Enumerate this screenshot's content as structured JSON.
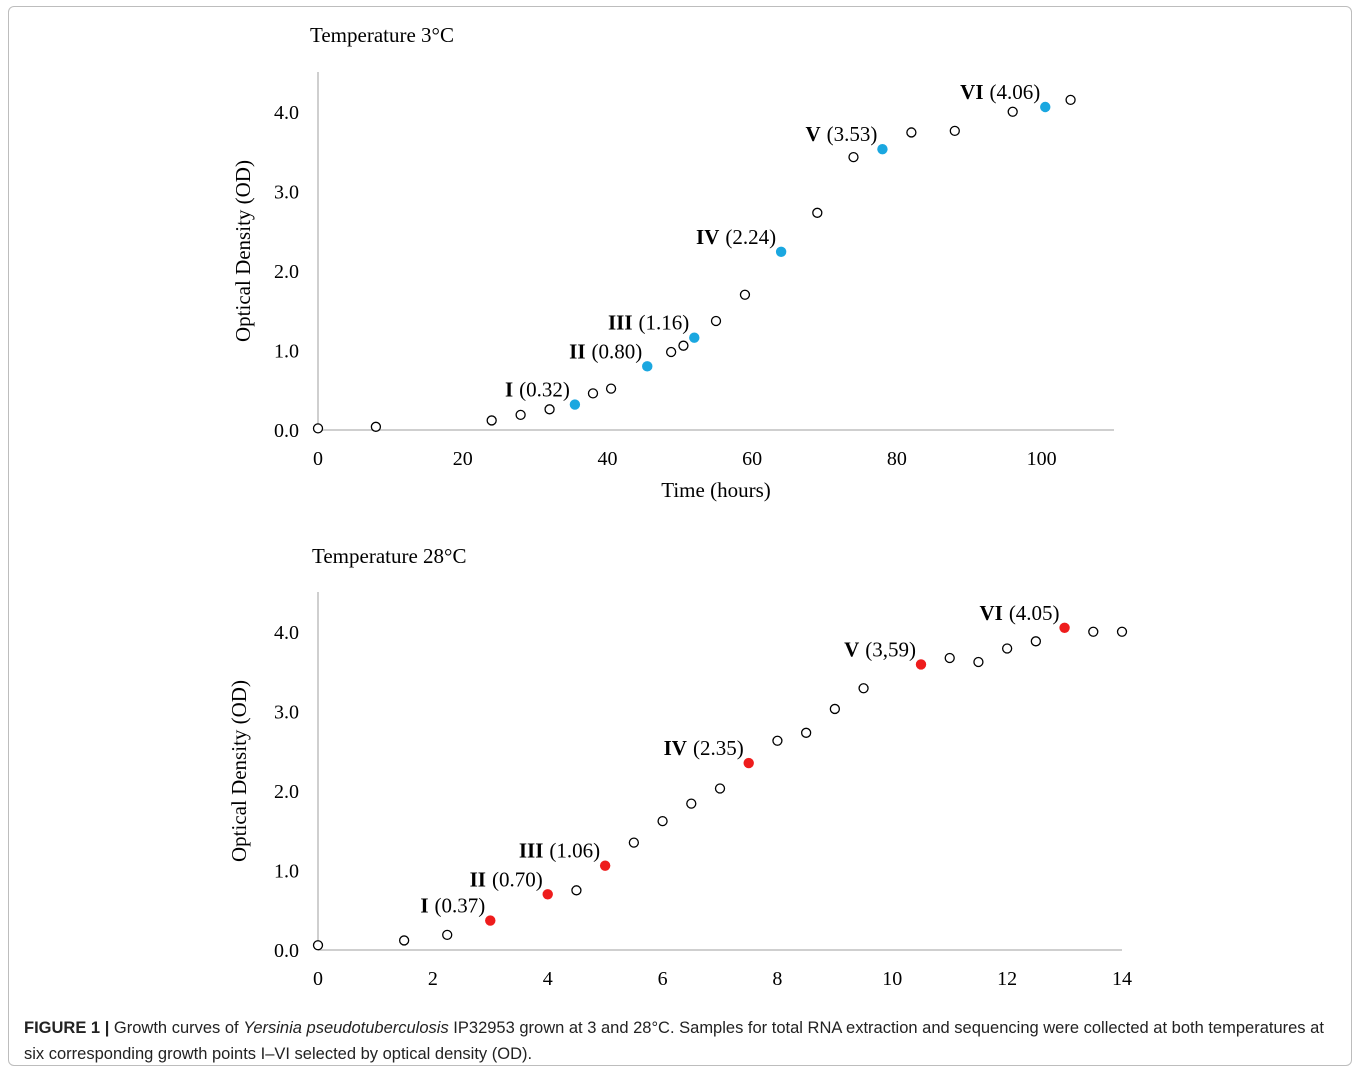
{
  "chart_data": [
    {
      "type": "scatter",
      "title": "Temperature 3°C",
      "xlabel": "Time (hours)",
      "ylabel": "Optical Density (OD)",
      "xlim": [
        0,
        110
      ],
      "ylim": [
        0,
        4.5
      ],
      "xticks": [
        0,
        20,
        40,
        60,
        80,
        100
      ],
      "yticks": [
        0,
        1,
        2,
        3,
        4
      ],
      "xtick_labels": [
        "0",
        "20",
        "40",
        "60",
        "80",
        "100"
      ],
      "ytick_labels": [
        "0.0",
        "1.0",
        "2.0",
        "3.0",
        "4.0"
      ],
      "grid": false,
      "highlight_color": "#1aa7e0",
      "series": [
        {
          "style": "open-circle",
          "points": [
            {
              "x": 0,
              "y": 0.02
            },
            {
              "x": 8,
              "y": 0.04
            },
            {
              "x": 24,
              "y": 0.12
            },
            {
              "x": 28,
              "y": 0.19
            },
            {
              "x": 32,
              "y": 0.26
            },
            {
              "x": 38,
              "y": 0.46
            },
            {
              "x": 40.5,
              "y": 0.52
            },
            {
              "x": 48.8,
              "y": 0.98
            },
            {
              "x": 50.5,
              "y": 1.06
            },
            {
              "x": 55,
              "y": 1.37
            },
            {
              "x": 59,
              "y": 1.7
            },
            {
              "x": 69,
              "y": 2.73
            },
            {
              "x": 74,
              "y": 3.43
            },
            {
              "x": 82,
              "y": 3.74
            },
            {
              "x": 88,
              "y": 3.76
            },
            {
              "x": 96,
              "y": 4.0
            },
            {
              "x": 104,
              "y": 4.15
            }
          ]
        },
        {
          "style": "filled",
          "points": [
            {
              "x": 35.5,
              "y": 0.32,
              "roman": "I",
              "value_text": "(0.32)"
            },
            {
              "x": 45.5,
              "y": 0.8,
              "roman": "II",
              "value_text": "(0.80)"
            },
            {
              "x": 52,
              "y": 1.16,
              "roman": "III",
              "value_text": "(1.16)"
            },
            {
              "x": 64,
              "y": 2.24,
              "roman": "IV",
              "value_text": "(2.24)"
            },
            {
              "x": 78,
              "y": 3.53,
              "roman": "V",
              "value_text": "(3.53)"
            },
            {
              "x": 100.5,
              "y": 4.06,
              "roman": "VI",
              "value_text": "(4.06)"
            }
          ]
        }
      ]
    },
    {
      "type": "scatter",
      "title": "Temperature 28°C",
      "xlabel": "",
      "ylabel": "Optical Density (OD)",
      "xlim": [
        0,
        14
      ],
      "ylim": [
        0,
        4.5
      ],
      "xticks": [
        0,
        2,
        4,
        6,
        8,
        10,
        12,
        14
      ],
      "yticks": [
        0,
        1,
        2,
        3,
        4
      ],
      "xtick_labels": [
        "0",
        "2",
        "4",
        "6",
        "8",
        "10",
        "12",
        "14"
      ],
      "ytick_labels": [
        "0.0",
        "1.0",
        "2.0",
        "3.0",
        "4.0"
      ],
      "grid": false,
      "highlight_color": "#ee1c1c",
      "series": [
        {
          "style": "open-circle",
          "points": [
            {
              "x": 0,
              "y": 0.06
            },
            {
              "x": 1.5,
              "y": 0.12
            },
            {
              "x": 2.25,
              "y": 0.19
            },
            {
              "x": 4.5,
              "y": 0.75
            },
            {
              "x": 5.5,
              "y": 1.35
            },
            {
              "x": 6,
              "y": 1.62
            },
            {
              "x": 6.5,
              "y": 1.84
            },
            {
              "x": 7,
              "y": 2.03
            },
            {
              "x": 8,
              "y": 2.63
            },
            {
              "x": 8.5,
              "y": 2.73
            },
            {
              "x": 9,
              "y": 3.03
            },
            {
              "x": 9.5,
              "y": 3.29
            },
            {
              "x": 11,
              "y": 3.67
            },
            {
              "x": 11.5,
              "y": 3.62
            },
            {
              "x": 12,
              "y": 3.79
            },
            {
              "x": 12.5,
              "y": 3.88
            },
            {
              "x": 13.5,
              "y": 4.0
            },
            {
              "x": 14,
              "y": 4.0
            }
          ]
        },
        {
          "style": "filled",
          "points": [
            {
              "x": 3,
              "y": 0.37,
              "roman": "I",
              "value_text": "(0.37)"
            },
            {
              "x": 4,
              "y": 0.7,
              "roman": "II",
              "value_text": "(0.70)"
            },
            {
              "x": 5,
              "y": 1.06,
              "roman": "III",
              "value_text": "(1.06)"
            },
            {
              "x": 7.5,
              "y": 2.35,
              "roman": "IV",
              "value_text": "(2.35)"
            },
            {
              "x": 10.5,
              "y": 3.59,
              "roman": "V",
              "value_text": "(3,59)"
            },
            {
              "x": 13,
              "y": 4.05,
              "roman": "VI",
              "value_text": "(4.05)"
            }
          ]
        }
      ]
    }
  ],
  "caption": {
    "figure_label": "FIGURE 1",
    "separator": "|",
    "text_before_species": "Growth curves of",
    "species": "Yersinia pseudotuberculosis",
    "text_after_species": "IP32953 grown at 3 and 28°C. Samples for total RNA extraction and sequencing were collected at both temperatures at six corresponding growth points I–VI selected by optical density (OD)."
  }
}
